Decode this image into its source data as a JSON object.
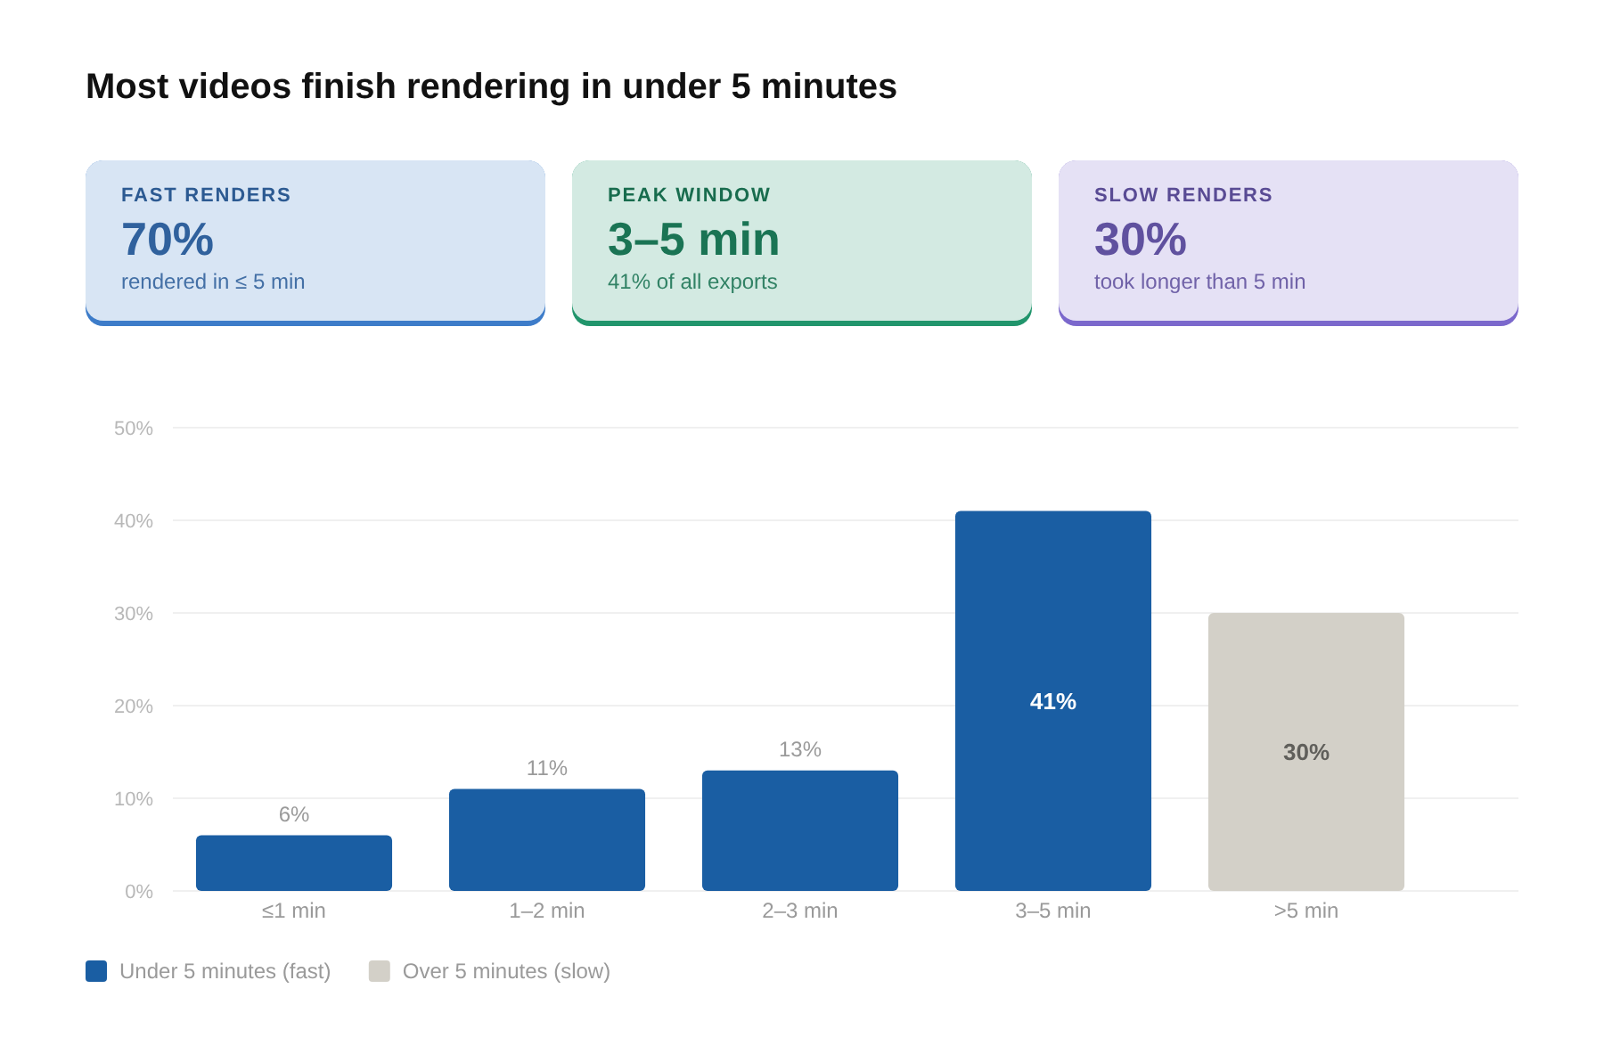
{
  "chart_data": [
    {
      "type": "other",
      "title": "FAST RENDERS",
      "annotations": [
        "70%",
        "rendered in ≤ 5 min"
      ],
      "color": "#3d7cc9"
    },
    {
      "type": "other",
      "title": "PEAK WINDOW",
      "annotations": [
        "3–5 min",
        "41% of all exports"
      ],
      "color": "#21956c"
    },
    {
      "type": "other",
      "title": "SLOW RENDERS",
      "annotations": [
        "30%",
        "took longer than 5 min"
      ],
      "color": "#7b68cc"
    },
    {
      "type": "bar",
      "title": "Most videos finish rendering in under 5 minutes",
      "categories": [
        "≤1 min",
        "1–2 min",
        "2–3 min",
        "3–5 min",
        ">5 min"
      ],
      "series": [
        {
          "name": "Under 5 minutes (fast)",
          "color": "#1a5ea3",
          "values": [
            6,
            11,
            13,
            41,
            null
          ],
          "value_labels": [
            "6%",
            "11%",
            "13%",
            "41%",
            null
          ]
        },
        {
          "name": "Over 5 minutes (slow)",
          "color": "#d3d0c8",
          "values": [
            null,
            null,
            null,
            null,
            30
          ],
          "value_labels": [
            null,
            null,
            null,
            null,
            "30%"
          ]
        }
      ],
      "ylim": [
        0,
        50
      ],
      "yticks": [
        {
          "value": 0,
          "label": "0%"
        },
        {
          "value": 10,
          "label": "10%"
        },
        {
          "value": 20,
          "label": "20%"
        },
        {
          "value": 30,
          "label": "30%"
        },
        {
          "value": 40,
          "label": "40%"
        },
        {
          "value": 50,
          "label": "50%"
        }
      ],
      "grid": "y",
      "legend": "bottom left"
    }
  ]
}
